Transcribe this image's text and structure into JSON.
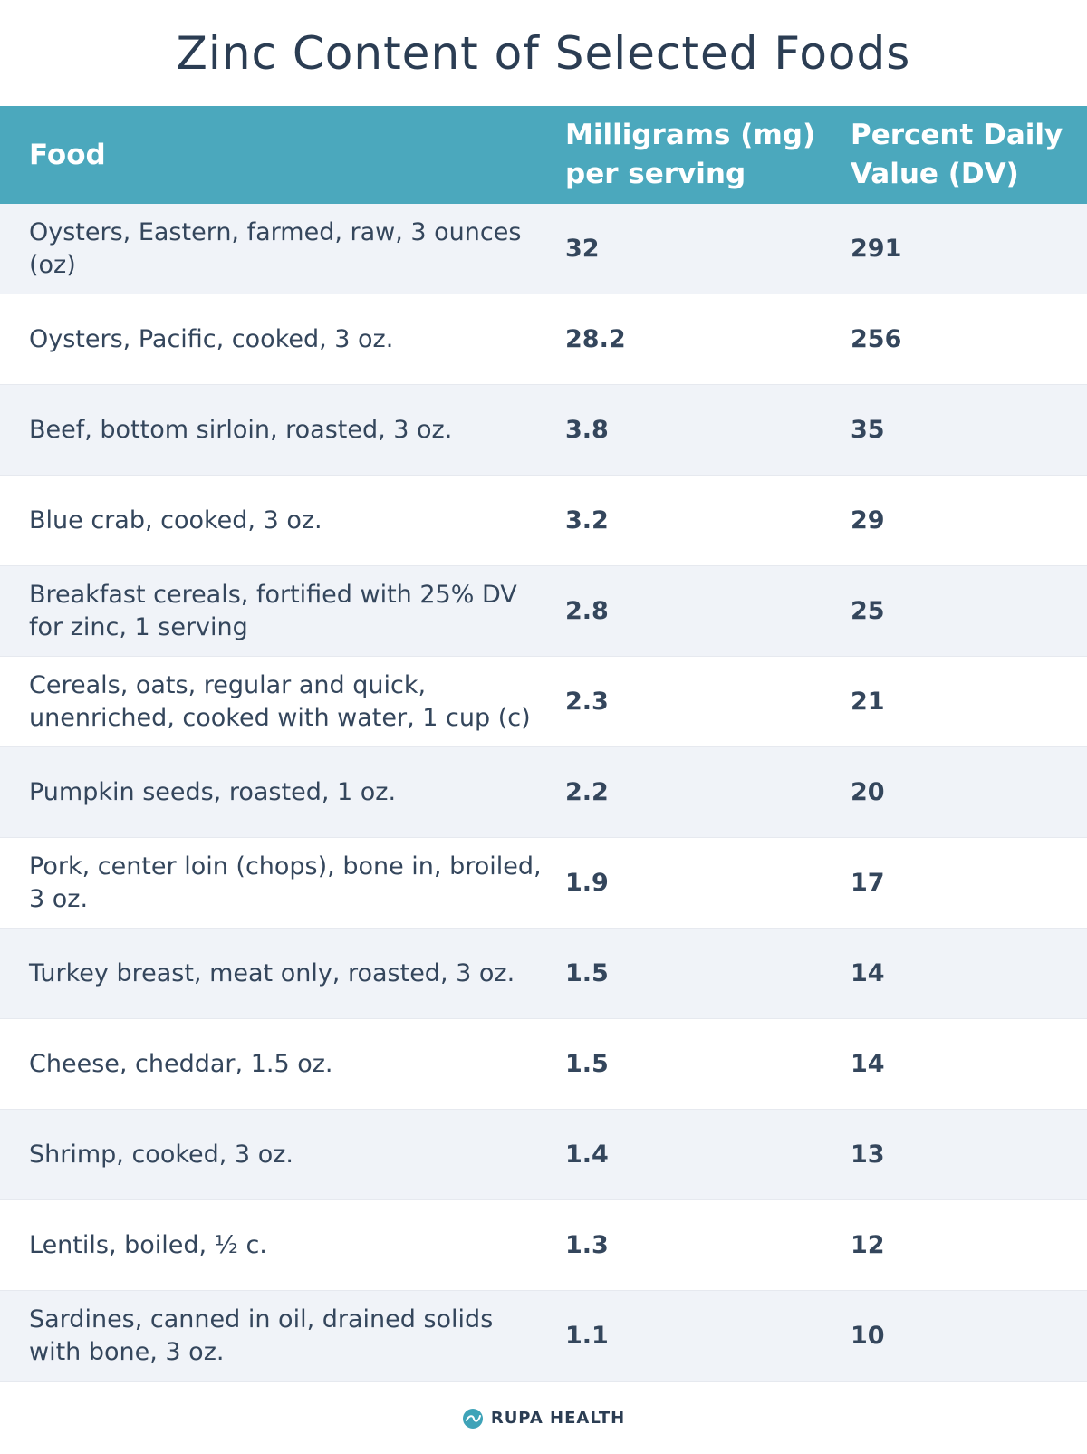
{
  "title": "Zinc Content of Selected Foods",
  "header": {
    "food": "Food",
    "mg": "Milligrams (mg) per serving",
    "dv": "Percent Daily Value (DV)"
  },
  "rows": [
    {
      "food": "Oysters, Eastern, farmed, raw, 3 ounces (oz)",
      "mg": "32",
      "dv": "291"
    },
    {
      "food": "Oysters, Pacific, cooked, 3 oz.",
      "mg": "28.2",
      "dv": "256"
    },
    {
      "food": "Beef, bottom sirloin, roasted, 3 oz.",
      "mg": "3.8",
      "dv": "35"
    },
    {
      "food": "Blue crab, cooked, 3 oz.",
      "mg": "3.2",
      "dv": "29"
    },
    {
      "food": "Breakfast cereals, fortified with 25% DV for zinc, 1 serving",
      "mg": "2.8",
      "dv": "25"
    },
    {
      "food": "Cereals, oats, regular and quick, unenriched, cooked with water, 1 cup (c)",
      "mg": "2.3",
      "dv": "21"
    },
    {
      "food": "Pumpkin seeds, roasted, 1 oz.",
      "mg": "2.2",
      "dv": "20"
    },
    {
      "food": "Pork, center loin (chops), bone in, broiled, 3 oz.",
      "mg": "1.9",
      "dv": "17"
    },
    {
      "food": "Turkey breast, meat only, roasted, 3 oz.",
      "mg": "1.5",
      "dv": "14"
    },
    {
      "food": "Cheese, cheddar, 1.5 oz.",
      "mg": "1.5",
      "dv": "14"
    },
    {
      "food": "Shrimp, cooked, 3 oz.",
      "mg": "1.4",
      "dv": "13"
    },
    {
      "food": "Lentils, boiled, ½ c.",
      "mg": "1.3",
      "dv": "12"
    },
    {
      "food": "Sardines, canned in oil, drained solids with bone, 3 oz.",
      "mg": "1.1",
      "dv": "10"
    }
  ],
  "footer": {
    "brand": "RUPA HEALTH",
    "logo_icon": "rupa-logo-icon"
  },
  "colors": {
    "header_bg": "#4ba8bd",
    "stripe": "#f0f3f8",
    "text": "#2c3e55"
  }
}
